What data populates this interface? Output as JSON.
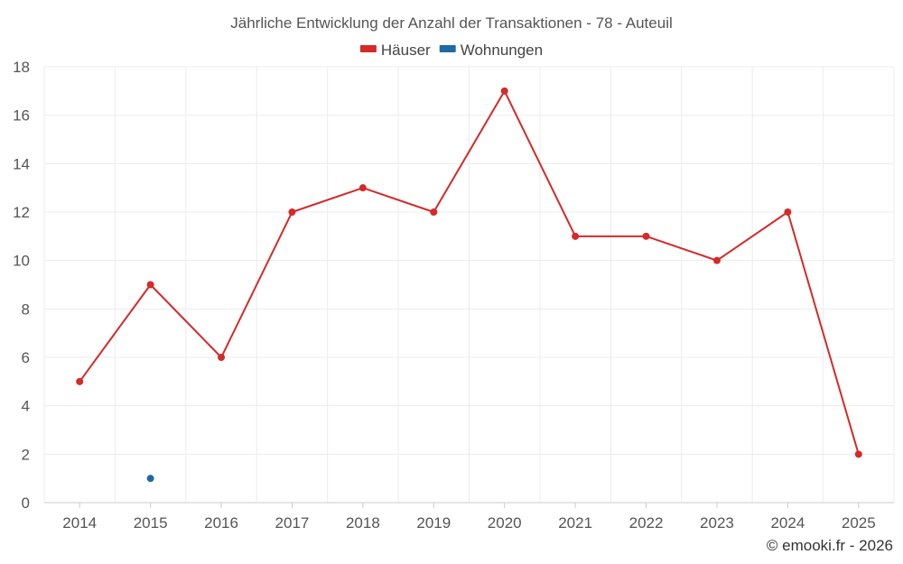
{
  "chart_data": {
    "type": "line",
    "title": "Jährliche Entwicklung der Anzahl der Transaktionen - 78 - Auteuil",
    "categories": [
      "2014",
      "2015",
      "2016",
      "2017",
      "2018",
      "2019",
      "2020",
      "2021",
      "2022",
      "2023",
      "2024",
      "2025"
    ],
    "series": [
      {
        "name": "Häuser",
        "color": "#d42a2a",
        "values": [
          5,
          9,
          6,
          12,
          13,
          12,
          17,
          11,
          11,
          10,
          12,
          2
        ]
      },
      {
        "name": "Wohnungen",
        "color": "#1f6aa5",
        "values": [
          null,
          1,
          null,
          null,
          null,
          null,
          null,
          null,
          null,
          null,
          null,
          null
        ]
      }
    ],
    "ylim": [
      0,
      18
    ],
    "yticks": [
      "0",
      "2",
      "4",
      "6",
      "8",
      "10",
      "12",
      "14",
      "16",
      "18"
    ],
    "grid": true,
    "legend_position": "top-center",
    "xlabel": "",
    "ylabel": ""
  },
  "credit": "© emooki.fr - 2026"
}
